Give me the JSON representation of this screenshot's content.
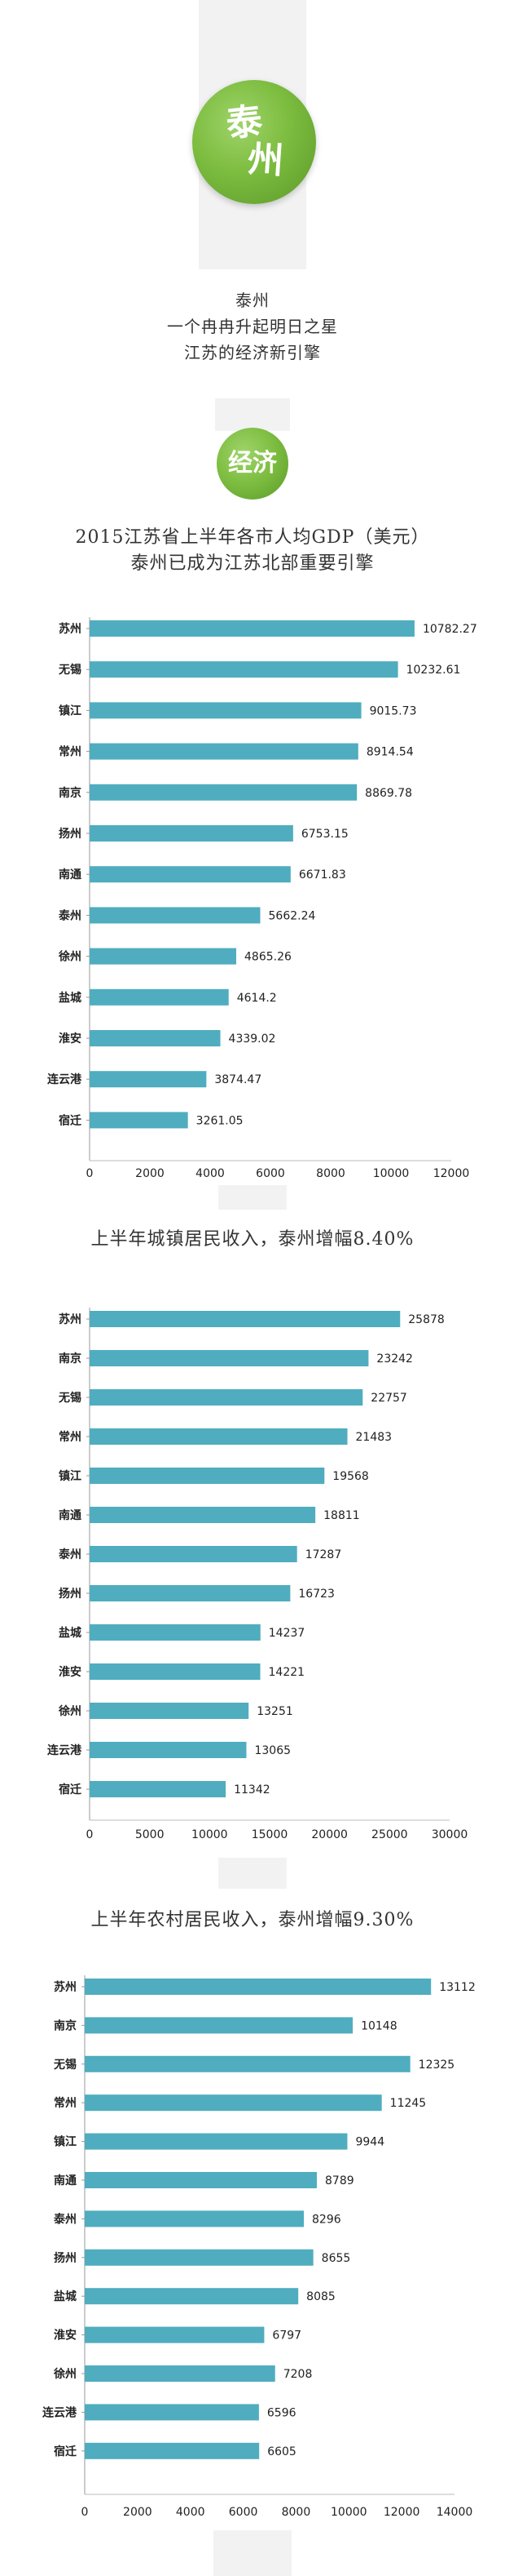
{
  "header": {
    "logo_text": [
      "泰",
      "州"
    ],
    "headline_lines": [
      "泰州",
      "一个冉冉升起明日之星",
      "江苏的经济新引擎"
    ],
    "badge_text": "经济",
    "accent_color": "#7cbc3f"
  },
  "chart_data": [
    {
      "type": "bar",
      "orientation": "horizontal",
      "title": [
        "2015江苏省上半年各市人均GDP（美元）",
        "泰州已成为江苏北部重要引擎"
      ],
      "categories": [
        "苏州",
        "无锡",
        "镇江",
        "常州",
        "南京",
        "扬州",
        "南通",
        "泰州",
        "徐州",
        "盐城",
        "淮安",
        "连云港",
        "宿迁"
      ],
      "values": [
        10782.27,
        10232.61,
        9015.73,
        8914.54,
        8869.78,
        6753.15,
        6671.83,
        5662.24,
        4865.26,
        4614.2,
        4339.02,
        3874.47,
        3261.05
      ],
      "value_labels": [
        "10782.27",
        "10232.61",
        "9015.73",
        "8914.54",
        "8869.78",
        "6753.15",
        "6671.83",
        "5662.24",
        "4865.26",
        "4614.2",
        "4339.02",
        "3874.47",
        "3261.05"
      ],
      "xlim": [
        0,
        12000
      ],
      "xticks": [
        "0",
        "2000",
        "4000",
        "6000",
        "8000",
        "10000",
        "12000"
      ],
      "bar_color": "#4fadbf",
      "grid": false
    },
    {
      "type": "bar",
      "orientation": "horizontal",
      "title": [
        "上半年城镇居民收入，泰州增幅8.40%"
      ],
      "categories": [
        "苏州",
        "南京",
        "无锡",
        "常州",
        "镇江",
        "南通",
        "泰州",
        "扬州",
        "盐城",
        "淮安",
        "徐州",
        "连云港",
        "宿迁"
      ],
      "values": [
        25878,
        23242,
        22757,
        21483,
        19568,
        18811,
        17287,
        16723,
        14237,
        14221,
        13251,
        13065,
        11342
      ],
      "value_labels": [
        "25878",
        "23242",
        "22757",
        "21483",
        "19568",
        "18811",
        "17287",
        "16723",
        "14237",
        "14221",
        "13251",
        "13065",
        "11342"
      ],
      "xlim": [
        0,
        30000
      ],
      "xticks": [
        "0",
        "5000",
        "10000",
        "15000",
        "20000",
        "25000",
        "30000"
      ],
      "bar_color": "#4fadbf",
      "grid": false
    },
    {
      "type": "bar",
      "orientation": "horizontal",
      "title": [
        "上半年农村居民收入，泰州增幅9.30%"
      ],
      "categories": [
        "苏州",
        "南京",
        "无锡",
        "常州",
        "镇江",
        "南通",
        "泰州",
        "扬州",
        "盐城",
        "淮安",
        "徐州",
        "连云港",
        "宿迁"
      ],
      "values": [
        13112,
        10148,
        12325,
        11245,
        9944,
        8789,
        8296,
        8655,
        8085,
        6797,
        7208,
        6596,
        6605
      ],
      "value_labels": [
        "13112",
        "10148",
        "12325",
        "11245",
        "9944",
        "8789",
        "8296",
        "8655",
        "8085",
        "6797",
        "7208",
        "6596",
        "6605"
      ],
      "xlim": [
        0,
        14000
      ],
      "xticks": [
        "0",
        "2000",
        "4000",
        "6000",
        "8000",
        "10000",
        "12000",
        "14000"
      ],
      "bar_color": "#4fadbf",
      "grid": false
    }
  ]
}
